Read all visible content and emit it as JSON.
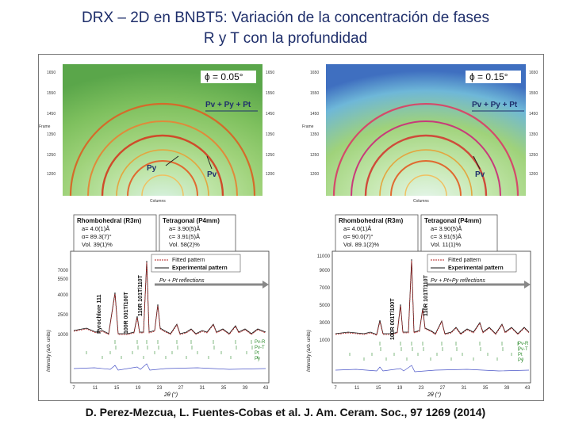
{
  "title": {
    "line1": "DRX – 2D en BNBT5: Variación de la concentración de fases",
    "line2": "R y T con la profundidad"
  },
  "panels": [
    {
      "phi_label": "ϕ = 0.05°",
      "frame_label": "Frame",
      "frame_axis": "Columns",
      "ring_label_main": "Pv + Py + Pt",
      "ring_label_py": "Py",
      "ring_label_pv": "Pv",
      "rhombo_title": "Rhombohedral (R3m)",
      "rhombo_a": "a= 4.0(1)Å",
      "rhombo_alpha": "α= 89.3(7)°",
      "rhombo_vol": "Vol. 39(1)%",
      "tetra_title": "Tetragonal (P4mm)",
      "tetra_a": "a= 3.90(5)Å",
      "tetra_c": "c= 3.91(5)Å",
      "tetra_vol": "Vol. 58(2)%",
      "legend_fitted": "Fitted pattern",
      "legend_experimental": "Experimental pattern",
      "reflections": "Pv + Pt reflections",
      "peak_pyrochlore": "Pyrochlore 111",
      "peak_100": "100R 001T/100T",
      "peak_110": "110R 101T/110T",
      "y_ticks": [
        "1000",
        "2500",
        "4000",
        "5500",
        "7000"
      ],
      "y_label": "Intensity (arb. units)",
      "x_ticks": [
        "7",
        "11",
        "15",
        "19",
        "23",
        "27",
        "31",
        "35",
        "39",
        "43"
      ],
      "x_label": "2θ (°)",
      "phase_marks": [
        "Pv-R",
        "Pv-T",
        "Pt",
        "Py"
      ]
    },
    {
      "phi_label": "ϕ = 0.15°",
      "frame_label": "Frame",
      "frame_axis": "Columns",
      "ring_label_main": "Pv + Py + Pt",
      "ring_label_pv": "Pv",
      "rhombo_title": "Rhombohedral (R3m)",
      "rhombo_a": "a= 4.0(1)Å",
      "rhombo_alpha": "α= 90.0(7)°",
      "rhombo_vol": "Vol. 89.1(2)%",
      "tetra_title": "Tetragonal (P4mm)",
      "tetra_a": "a= 3.90(5)Å",
      "tetra_c": "c= 3.91(5)Å",
      "tetra_vol": "Vol. 11(1)%",
      "legend_fitted": "Fitted pattern",
      "legend_experimental": "Experimental pattern",
      "reflections": "Pv + Pt+Py reflections",
      "peak_100": "100R 001T/100T",
      "peak_110": "110R 101T/110T",
      "y_ticks": [
        "1000",
        "3000",
        "5000",
        "7000",
        "9000",
        "11000"
      ],
      "y_label": "Intensity (arb. units)",
      "x_ticks": [
        "7",
        "11",
        "15",
        "19",
        "23",
        "27",
        "31",
        "35",
        "39",
        "43"
      ],
      "x_label": "2θ (°)",
      "phase_marks": [
        "Pv-R",
        "Pv-T",
        "Pt",
        "Py"
      ]
    }
  ],
  "citation": "D. Perez-Mezcua, L. Fuentes-Cobas et al. J. Am. Ceram. Soc., 97 1269 (2014)",
  "colors": {
    "title": "#1f2f6b",
    "fitted": "#b22222",
    "experimental": "#111111",
    "difference": "#4a55c8",
    "ticks": "#2e8b2e",
    "arrow": "#888888"
  }
}
